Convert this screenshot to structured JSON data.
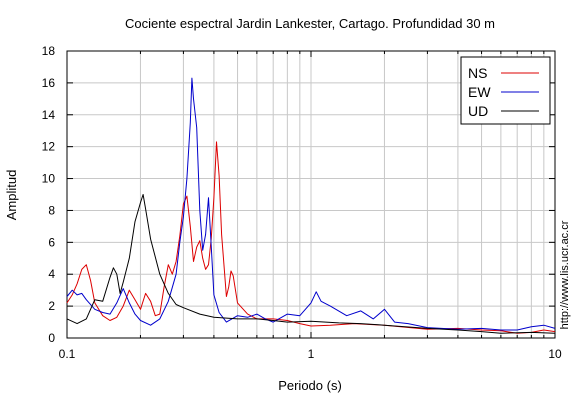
{
  "chart_data": {
    "type": "line",
    "title": "Cociente espectral Jardin Lankester, Cartago. Profundidad 30 m",
    "xlabel": "Periodo (s)",
    "ylabel": "Amplitud",
    "credit": "http://www.lis.ucr.ac.cr",
    "x_scale": "log",
    "xlim": [
      0.1,
      10
    ],
    "ylim": [
      0,
      18
    ],
    "x_tick_labels": [
      {
        "value": 0.1,
        "label": "0.1"
      },
      {
        "value": 1,
        "label": "1"
      },
      {
        "value": 10,
        "label": "10"
      }
    ],
    "y_ticks": [
      0,
      2,
      4,
      6,
      8,
      10,
      12,
      14,
      16,
      18
    ],
    "grid": true,
    "legend_position": "top-right",
    "series": [
      {
        "name": "NS",
        "color": "#dd0000",
        "points": [
          [
            0.1,
            2.2
          ],
          [
            0.105,
            2.7
          ],
          [
            0.11,
            3.4
          ],
          [
            0.115,
            4.3
          ],
          [
            0.12,
            4.6
          ],
          [
            0.125,
            3.6
          ],
          [
            0.13,
            2.2
          ],
          [
            0.14,
            1.4
          ],
          [
            0.15,
            1.1
          ],
          [
            0.16,
            1.3
          ],
          [
            0.17,
            2.0
          ],
          [
            0.18,
            3.0
          ],
          [
            0.19,
            2.4
          ],
          [
            0.2,
            1.8
          ],
          [
            0.21,
            2.8
          ],
          [
            0.22,
            2.3
          ],
          [
            0.23,
            1.4
          ],
          [
            0.24,
            1.5
          ],
          [
            0.25,
            3.2
          ],
          [
            0.26,
            4.6
          ],
          [
            0.27,
            4.0
          ],
          [
            0.28,
            4.8
          ],
          [
            0.29,
            6.4
          ],
          [
            0.3,
            8.4
          ],
          [
            0.31,
            8.9
          ],
          [
            0.32,
            7.0
          ],
          [
            0.33,
            4.8
          ],
          [
            0.34,
            5.7
          ],
          [
            0.35,
            6.1
          ],
          [
            0.36,
            5.0
          ],
          [
            0.37,
            4.3
          ],
          [
            0.38,
            4.6
          ],
          [
            0.39,
            6.2
          ],
          [
            0.4,
            8.8
          ],
          [
            0.41,
            12.3
          ],
          [
            0.42,
            10.2
          ],
          [
            0.43,
            6.5
          ],
          [
            0.45,
            2.6
          ],
          [
            0.46,
            3.2
          ],
          [
            0.47,
            4.2
          ],
          [
            0.48,
            3.9
          ],
          [
            0.5,
            2.2
          ],
          [
            0.55,
            1.5
          ],
          [
            0.6,
            1.2
          ],
          [
            0.7,
            1.2
          ],
          [
            0.8,
            1.1
          ],
          [
            0.9,
            0.9
          ],
          [
            1.0,
            0.75
          ],
          [
            1.2,
            0.8
          ],
          [
            1.5,
            0.9
          ],
          [
            2.0,
            0.8
          ],
          [
            3.0,
            0.55
          ],
          [
            4.0,
            0.6
          ],
          [
            5.0,
            0.5
          ],
          [
            6.0,
            0.45
          ],
          [
            7.0,
            0.3
          ],
          [
            8.0,
            0.35
          ],
          [
            9.0,
            0.5
          ],
          [
            10.0,
            0.4
          ]
        ]
      },
      {
        "name": "EW",
        "color": "#0000cc",
        "points": [
          [
            0.1,
            2.6
          ],
          [
            0.105,
            3.0
          ],
          [
            0.11,
            2.7
          ],
          [
            0.115,
            2.8
          ],
          [
            0.12,
            2.4
          ],
          [
            0.13,
            1.8
          ],
          [
            0.14,
            1.6
          ],
          [
            0.15,
            1.5
          ],
          [
            0.16,
            2.2
          ],
          [
            0.17,
            3.1
          ],
          [
            0.18,
            2.2
          ],
          [
            0.19,
            1.5
          ],
          [
            0.2,
            1.1
          ],
          [
            0.22,
            0.8
          ],
          [
            0.24,
            1.2
          ],
          [
            0.26,
            2.3
          ],
          [
            0.28,
            4.0
          ],
          [
            0.29,
            6.0
          ],
          [
            0.3,
            7.6
          ],
          [
            0.31,
            10.0
          ],
          [
            0.32,
            13.5
          ],
          [
            0.325,
            16.3
          ],
          [
            0.33,
            15.0
          ],
          [
            0.34,
            13.2
          ],
          [
            0.35,
            8.0
          ],
          [
            0.36,
            5.5
          ],
          [
            0.37,
            6.5
          ],
          [
            0.38,
            8.8
          ],
          [
            0.39,
            5.8
          ],
          [
            0.4,
            2.7
          ],
          [
            0.42,
            1.6
          ],
          [
            0.45,
            1.0
          ],
          [
            0.5,
            1.4
          ],
          [
            0.55,
            1.3
          ],
          [
            0.6,
            1.5
          ],
          [
            0.65,
            1.2
          ],
          [
            0.7,
            1.0
          ],
          [
            0.8,
            1.5
          ],
          [
            0.9,
            1.4
          ],
          [
            1.0,
            2.2
          ],
          [
            1.05,
            2.9
          ],
          [
            1.1,
            2.3
          ],
          [
            1.2,
            2.0
          ],
          [
            1.4,
            1.4
          ],
          [
            1.6,
            1.7
          ],
          [
            1.8,
            1.2
          ],
          [
            2.0,
            1.8
          ],
          [
            2.2,
            1.0
          ],
          [
            2.5,
            0.9
          ],
          [
            3.0,
            0.65
          ],
          [
            4.0,
            0.55
          ],
          [
            5.0,
            0.6
          ],
          [
            6.0,
            0.5
          ],
          [
            7.0,
            0.5
          ],
          [
            8.0,
            0.7
          ],
          [
            9.0,
            0.8
          ],
          [
            10.0,
            0.6
          ]
        ]
      },
      {
        "name": "UD",
        "color": "#000000",
        "points": [
          [
            0.1,
            1.2
          ],
          [
            0.11,
            0.9
          ],
          [
            0.12,
            1.2
          ],
          [
            0.13,
            2.4
          ],
          [
            0.14,
            2.3
          ],
          [
            0.15,
            3.8
          ],
          [
            0.155,
            4.4
          ],
          [
            0.16,
            4.0
          ],
          [
            0.165,
            2.8
          ],
          [
            0.17,
            3.5
          ],
          [
            0.18,
            5.0
          ],
          [
            0.19,
            7.3
          ],
          [
            0.2,
            8.5
          ],
          [
            0.205,
            9.0
          ],
          [
            0.21,
            8.1
          ],
          [
            0.22,
            6.2
          ],
          [
            0.24,
            4.0
          ],
          [
            0.26,
            2.8
          ],
          [
            0.28,
            2.1
          ],
          [
            0.3,
            1.9
          ],
          [
            0.35,
            1.5
          ],
          [
            0.4,
            1.3
          ],
          [
            0.5,
            1.2
          ],
          [
            0.6,
            1.2
          ],
          [
            0.7,
            1.1
          ],
          [
            0.8,
            1.0
          ],
          [
            1.0,
            1.05
          ],
          [
            1.3,
            0.95
          ],
          [
            1.6,
            0.9
          ],
          [
            2.0,
            0.8
          ],
          [
            3.0,
            0.6
          ],
          [
            4.0,
            0.5
          ],
          [
            5.0,
            0.4
          ],
          [
            6.0,
            0.3
          ],
          [
            8.0,
            0.35
          ],
          [
            10.0,
            0.3
          ]
        ]
      }
    ]
  }
}
